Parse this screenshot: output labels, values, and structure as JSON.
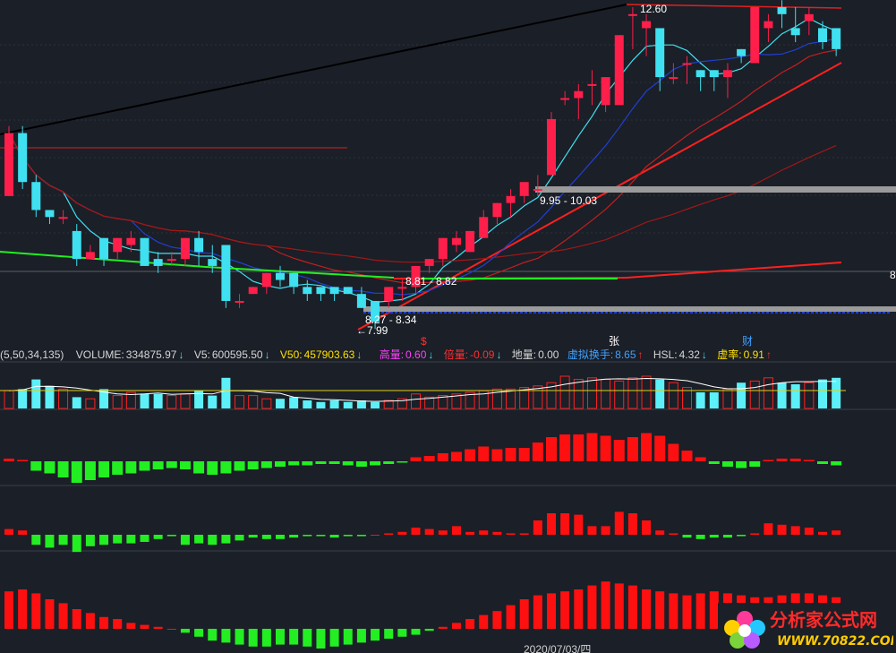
{
  "indicator_bar": {
    "params": "(5,50,34,135)",
    "volume_label": "VOLUME:",
    "volume_value": "334875.97",
    "v5_label": "V5:",
    "v5_value": "600595.50",
    "v50_label": "V50:",
    "v50_value": "457903.63",
    "high_vol_label": "高量:",
    "high_vol_value": "0.60",
    "mult_label": "倍量:",
    "mult_value": "-0.09",
    "low_vol_label": "地量:",
    "low_vol_value": "0.00",
    "virtual_label": "虚拟换手:",
    "virtual_value": "8.65",
    "hsl_label": "HSL:",
    "hsl_value": "4.32",
    "xu_label": "虚率:",
    "xu_value": "0.91",
    "down_arrow": "↓",
    "up_arrow": "↑"
  },
  "price_labels": {
    "high": "12.60",
    "low": "←7.99",
    "zone_top": "9.95 - 10.03",
    "zone_mid": "8.81 - 8.82",
    "zone_low": "8.27 - 8.34",
    "right_edge": "8"
  },
  "event_markers": [
    "$",
    "张",
    "财"
  ],
  "date_label": "2020/07/03/四",
  "watermark": {
    "title": "分析家公式网",
    "url": "WWW.70822.COM"
  },
  "colors": {
    "up": "#ff1f4a",
    "down": "#3fe0f0",
    "green": "#22ee22",
    "red_bar": "#ff1010",
    "bg": "#1b1f27"
  },
  "chart_data": {
    "type": "candlestick",
    "candles": [
      [
        9.9,
        10.8,
        9.9,
        10.9
      ],
      [
        10.8,
        10.1,
        10.0,
        10.9
      ],
      [
        10.1,
        9.7,
        9.6,
        10.2
      ],
      [
        9.7,
        9.6,
        9.5,
        9.7
      ],
      [
        9.6,
        9.6,
        9.5,
        9.7
      ],
      [
        9.4,
        9.0,
        8.9,
        9.5
      ],
      [
        9.0,
        9.1,
        9.0,
        9.2
      ],
      [
        9.3,
        9.0,
        8.9,
        9.3
      ],
      [
        9.1,
        9.3,
        9.0,
        9.3
      ],
      [
        9.2,
        9.3,
        9.1,
        9.4
      ],
      [
        9.3,
        8.9,
        8.9,
        9.3
      ],
      [
        9.0,
        8.9,
        8.8,
        9.1
      ],
      [
        9.0,
        9.0,
        8.9,
        9.1
      ],
      [
        9.0,
        9.3,
        8.9,
        9.3
      ],
      [
        9.3,
        9.1,
        8.9,
        9.4
      ],
      [
        9.0,
        8.9,
        8.8,
        9.2
      ],
      [
        9.2,
        8.4,
        8.3,
        9.2
      ],
      [
        8.4,
        8.4,
        8.3,
        8.5
      ],
      [
        8.5,
        8.6,
        8.5,
        8.6
      ],
      [
        8.6,
        8.8,
        8.5,
        8.8
      ],
      [
        8.8,
        8.7,
        8.6,
        8.9
      ],
      [
        8.8,
        8.6,
        8.5,
        8.8
      ],
      [
        8.6,
        8.5,
        8.4,
        8.7
      ],
      [
        8.6,
        8.5,
        8.4,
        8.6
      ],
      [
        8.6,
        8.5,
        8.4,
        8.6
      ],
      [
        8.6,
        8.5,
        8.5,
        8.6
      ],
      [
        8.5,
        8.3,
        8.3,
        8.6
      ],
      [
        8.4,
        8.1,
        8.0,
        8.4
      ],
      [
        8.4,
        8.6,
        8.3,
        8.6
      ],
      [
        8.6,
        8.6,
        8.4,
        8.7
      ],
      [
        8.6,
        8.9,
        8.5,
        8.9
      ],
      [
        8.9,
        9.0,
        8.8,
        9.0
      ],
      [
        9.0,
        9.3,
        8.9,
        9.3
      ],
      [
        9.2,
        9.3,
        9.1,
        9.4
      ],
      [
        9.1,
        9.4,
        9.1,
        9.4
      ],
      [
        9.3,
        9.6,
        9.3,
        9.7
      ],
      [
        9.6,
        9.8,
        9.5,
        9.8
      ],
      [
        9.8,
        9.9,
        9.6,
        10.0
      ],
      [
        9.9,
        10.1,
        9.8,
        10.1
      ],
      [
        10.0,
        10.0,
        9.9,
        10.2
      ],
      [
        10.2,
        11.0,
        10.2,
        11.1
      ],
      [
        11.3,
        11.3,
        11.2,
        11.4
      ],
      [
        11.3,
        11.4,
        11.0,
        11.5
      ],
      [
        11.5,
        11.5,
        11.2,
        11.7
      ],
      [
        11.2,
        11.6,
        11.1,
        11.6
      ],
      [
        11.2,
        12.2,
        11.2,
        12.2
      ],
      [
        12.5,
        12.5,
        12.0,
        12.6
      ],
      [
        12.3,
        12.4,
        11.9,
        12.5
      ],
      [
        12.3,
        11.6,
        11.4,
        12.3
      ],
      [
        11.6,
        11.6,
        11.5,
        11.8
      ],
      [
        11.8,
        11.8,
        11.5,
        11.9
      ],
      [
        11.7,
        11.6,
        11.4,
        11.7
      ],
      [
        11.7,
        11.6,
        11.4,
        11.7
      ],
      [
        11.6,
        11.7,
        11.3,
        11.8
      ],
      [
        12.0,
        11.9,
        11.8,
        12.0
      ],
      [
        11.8,
        12.6,
        11.8,
        12.6
      ],
      [
        12.3,
        12.4,
        12.1,
        12.5
      ],
      [
        12.6,
        12.5,
        12.3,
        12.7
      ],
      [
        12.3,
        12.2,
        12.1,
        12.6
      ],
      [
        12.4,
        12.5,
        12.2,
        12.6
      ],
      [
        12.3,
        12.1,
        12.0,
        12.4
      ],
      [
        12.3,
        12.0,
        11.9,
        12.3
      ]
    ],
    "volume": [
      0.55,
      0.6,
      0.9,
      0.7,
      0.6,
      0.35,
      0.3,
      0.6,
      0.4,
      0.5,
      0.45,
      0.45,
      0.4,
      0.45,
      0.55,
      0.4,
      0.95,
      0.4,
      0.4,
      0.3,
      0.3,
      0.35,
      0.25,
      0.2,
      0.25,
      0.2,
      0.25,
      0.2,
      0.25,
      0.3,
      0.45,
      0.35,
      0.4,
      0.45,
      0.5,
      0.55,
      0.6,
      0.6,
      0.65,
      0.7,
      0.8,
      1.0,
      0.9,
      0.95,
      0.9,
      0.85,
      0.95,
      1.0,
      0.9,
      0.8,
      0.65,
      0.5,
      0.5,
      0.6,
      0.8,
      0.85,
      0.95,
      0.8,
      0.75,
      0.8,
      0.9,
      0.95
    ],
    "macd1": [
      0.1,
      0.05,
      -0.35,
      -0.45,
      -0.6,
      -0.8,
      -0.7,
      -0.6,
      -0.5,
      -0.45,
      -0.35,
      -0.3,
      -0.25,
      -0.3,
      -0.45,
      -0.5,
      -0.45,
      -0.35,
      -0.3,
      -0.25,
      -0.2,
      -0.15,
      -0.15,
      -0.1,
      -0.1,
      -0.15,
      -0.2,
      -0.15,
      -0.1,
      -0.05,
      0.15,
      0.2,
      0.3,
      0.35,
      0.45,
      0.55,
      0.45,
      0.5,
      0.5,
      0.7,
      0.9,
      1.0,
      1.0,
      1.05,
      0.95,
      0.8,
      0.9,
      1.05,
      0.95,
      0.65,
      0.4,
      0.15,
      -0.1,
      -0.2,
      -0.25,
      -0.2,
      0.05,
      0.1,
      0.1,
      0.05,
      -0.1,
      -0.15
    ],
    "macd2": [
      0.2,
      0.15,
      -0.35,
      -0.45,
      -0.35,
      -0.6,
      -0.4,
      -0.35,
      -0.3,
      -0.3,
      -0.25,
      -0.15,
      -0.05,
      -0.35,
      -0.3,
      -0.35,
      -0.3,
      -0.2,
      -0.1,
      -0.15,
      -0.15,
      -0.1,
      -0.05,
      -0.05,
      -0.1,
      -0.05,
      -0.05,
      0.0,
      0.05,
      0.1,
      0.25,
      0.2,
      0.15,
      0.3,
      0.1,
      0.15,
      0.1,
      0.05,
      0.05,
      0.5,
      0.75,
      0.75,
      0.7,
      0.3,
      0.3,
      0.8,
      0.75,
      0.5,
      0.15,
      0.05,
      -0.1,
      -0.15,
      -0.1,
      -0.1,
      -0.05,
      0.05,
      0.4,
      0.35,
      0.3,
      0.25,
      0.1,
      0.15
    ],
    "macd3": [
      0.95,
      1.0,
      0.9,
      0.75,
      0.65,
      0.5,
      0.4,
      0.3,
      0.25,
      0.15,
      0.1,
      0.05,
      0.0,
      -0.1,
      -0.2,
      -0.3,
      -0.35,
      -0.4,
      -0.45,
      -0.45,
      -0.4,
      -0.4,
      -0.45,
      -0.5,
      -0.45,
      -0.4,
      -0.35,
      -0.3,
      -0.25,
      -0.2,
      -0.15,
      -0.05,
      0.05,
      0.15,
      0.25,
      0.35,
      0.45,
      0.6,
      0.75,
      0.85,
      0.9,
      0.95,
      1.0,
      1.1,
      1.2,
      1.15,
      1.1,
      1.0,
      0.95,
      0.9,
      0.85,
      0.9,
      0.95,
      0.9,
      0.85,
      0.8,
      0.8,
      0.85,
      0.9,
      0.9,
      0.85,
      0.8
    ]
  }
}
